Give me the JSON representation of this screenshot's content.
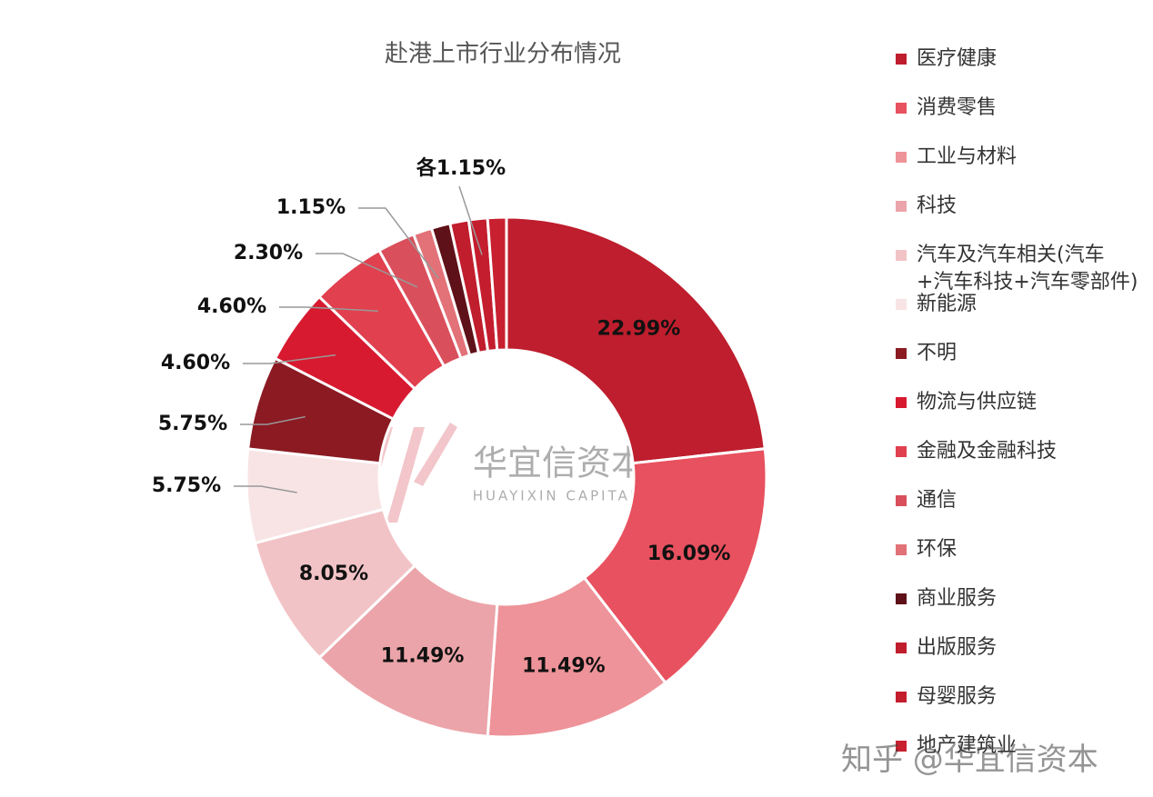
{
  "chart_data": {
    "type": "donut",
    "title": "赴港上市行业分布情况",
    "categories": [
      "医疗健康",
      "消费零售",
      "工业与材料",
      "科技",
      "汽车及汽车相关(汽车+汽车科技+汽车零部件)",
      "新能源",
      "不明",
      "物流与供应链",
      "金融及金融科技",
      "通信",
      "环保",
      "商业服务",
      "出版服务",
      "母婴服务",
      "地产建筑业"
    ],
    "values": [
      22.99,
      16.09,
      11.49,
      11.49,
      8.05,
      5.75,
      5.75,
      4.6,
      4.6,
      2.3,
      1.15,
      1.15,
      1.15,
      1.15,
      1.15
    ],
    "value_labels": [
      "22.99%",
      "16.09%",
      "11.49%",
      "11.49%",
      "8.05%",
      "5.75%",
      "5.75%",
      "4.60%",
      "4.60%",
      "2.30%",
      "1.15%",
      null,
      null,
      null,
      null
    ],
    "colors": [
      "#be1e2d",
      "#e8515f",
      "#ee9399",
      "#eba4a9",
      "#f2c3c6",
      "#f8e4e5",
      "#8b1a22",
      "#d71a30",
      "#e1404f",
      "#d9505c",
      "#e27178",
      "#5e1118",
      "#c01d2d",
      "#c41d2e",
      "#c8202f"
    ],
    "group_label": "各1.15%",
    "watermarks": [
      "华宜信资本",
      "HUAYIXIN CAPITAL",
      "知乎 @华宜信资本"
    ]
  }
}
